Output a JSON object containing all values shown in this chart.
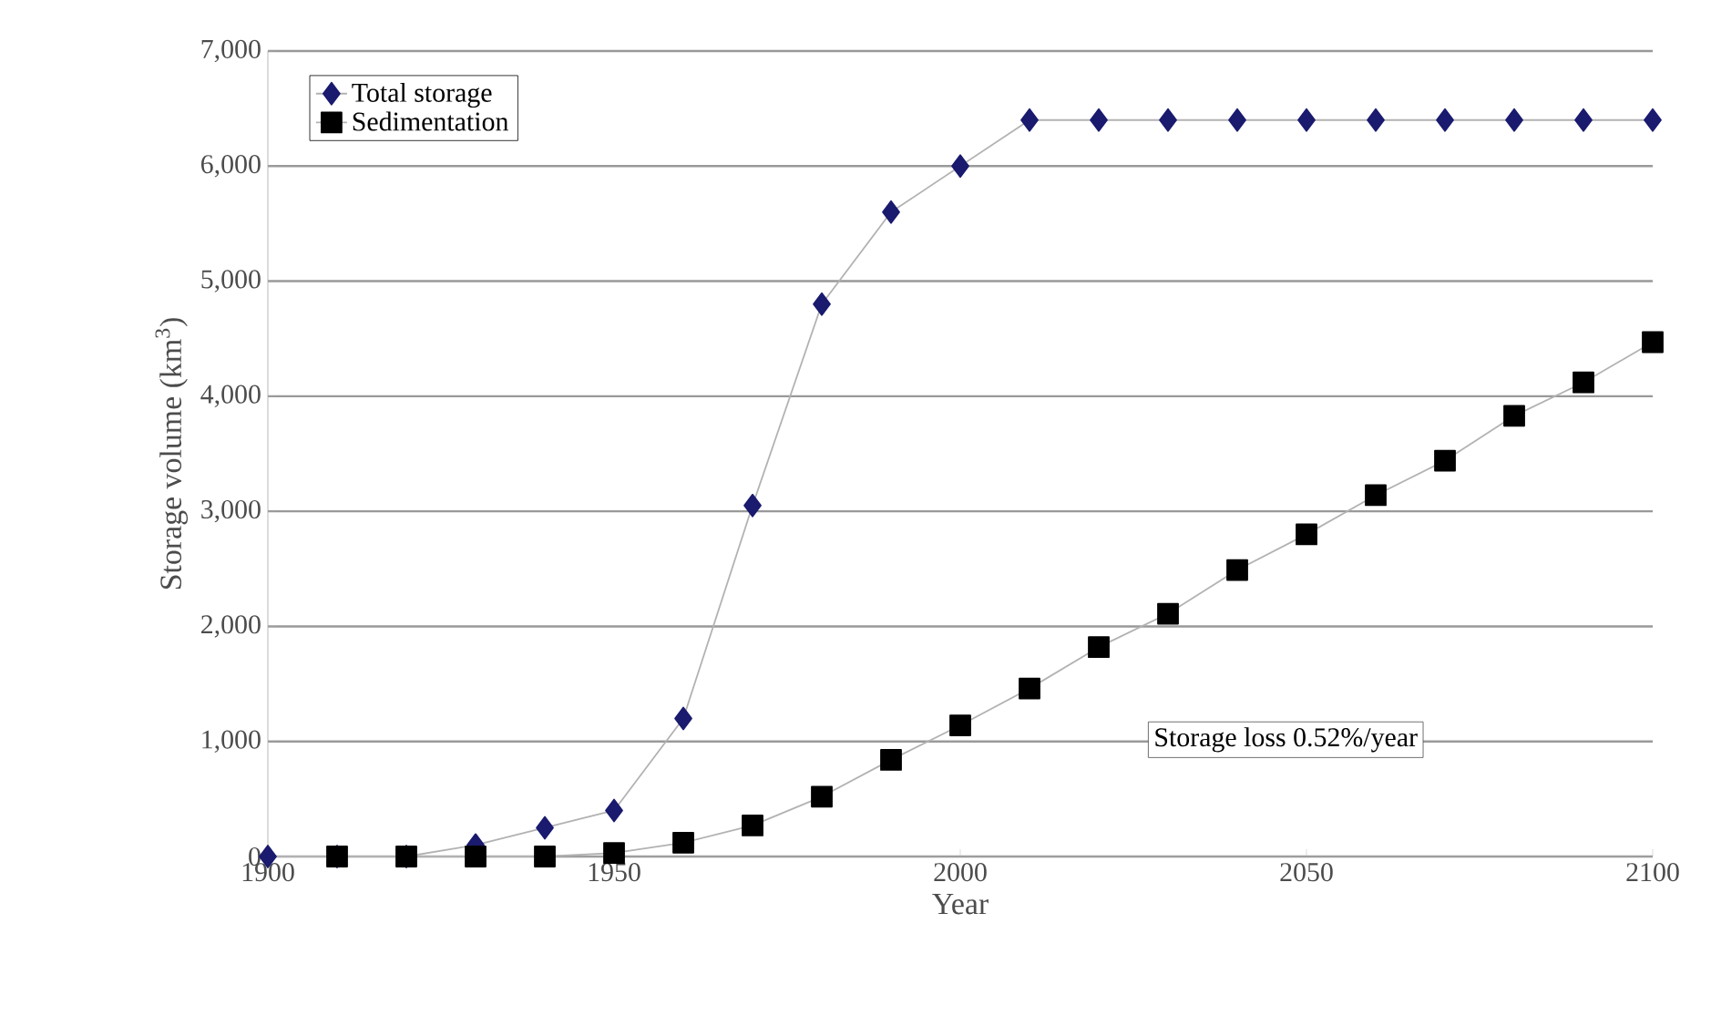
{
  "chart_data": {
    "type": "line",
    "xlabel": "Year",
    "ylabel": "Storage volume (km$^{3}$)",
    "x": [
      1900,
      1910,
      1920,
      1930,
      1940,
      1950,
      1960,
      1970,
      1980,
      1990,
      2000,
      2010,
      2020,
      2030,
      2040,
      2050,
      2060,
      2070,
      2080,
      2090,
      2100
    ],
    "series": [
      {
        "name": "Total storage",
        "color": "#1a1a6e",
        "marker": "diamond",
        "values": [
          0,
          0,
          0,
          100,
          250,
          400,
          1200,
          3050,
          4800,
          5600,
          6000,
          6400,
          6400,
          6400,
          6400,
          6400,
          6400,
          6400,
          6400,
          6400,
          6400
        ]
      },
      {
        "name": "Sedimentation",
        "color": "#000000",
        "marker": "square",
        "x": [
          1910,
          1920,
          1930,
          1940,
          1950,
          1960,
          1970,
          1980,
          1990,
          2000,
          2010,
          2020,
          2030,
          2040,
          2050,
          2060,
          2070,
          2080,
          2090,
          2100
        ],
        "values": [
          0,
          0,
          0,
          0,
          30,
          120,
          270,
          520,
          840,
          1140,
          1460,
          1820,
          2110,
          2490,
          2800,
          3140,
          3440,
          3830,
          4120,
          4470
        ]
      }
    ],
    "xlim": [
      1900,
      2100
    ],
    "xticks": [
      1900,
      1950,
      2000,
      2050,
      2100
    ],
    "ylim": [
      0,
      7000
    ],
    "yticks": [
      {
        "value": 0,
        "label": "0"
      },
      {
        "value": 1000,
        "label": "1,000"
      },
      {
        "value": 2000,
        "label": "2,000"
      },
      {
        "value": 3000,
        "label": "3,000"
      },
      {
        "value": 4000,
        "label": "4,000"
      },
      {
        "value": 5000,
        "label": "5,000"
      },
      {
        "value": 6000,
        "label": "6,000"
      },
      {
        "value": 7000,
        "label": "7,000"
      }
    ],
    "grid": "y",
    "legend": "top left",
    "annotations": [
      "Storage loss 0.52%/year"
    ]
  }
}
